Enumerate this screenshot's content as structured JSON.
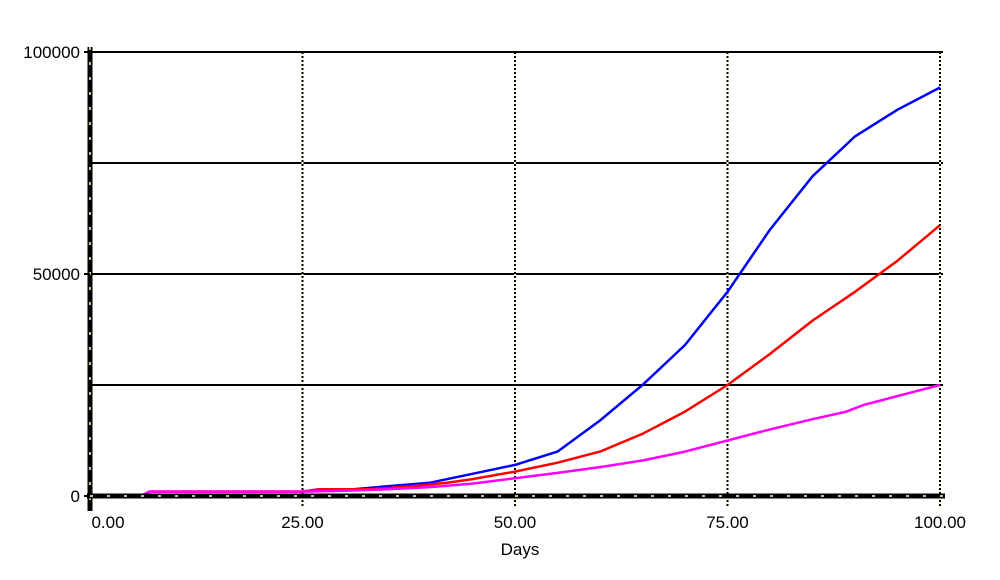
{
  "chart_data": {
    "type": "line",
    "title": "",
    "xlabel": "Days",
    "ylabel": "",
    "xlim": [
      0,
      100
    ],
    "ylim": [
      0,
      100000
    ],
    "x_ticks": [
      {
        "value": 0,
        "label": "0.00"
      },
      {
        "value": 25,
        "label": "25.00"
      },
      {
        "value": 50,
        "label": "50.00"
      },
      {
        "value": 75,
        "label": "75.00"
      },
      {
        "value": 100,
        "label": "100.00"
      }
    ],
    "y_ticks": [
      {
        "value": 0,
        "label": "0"
      },
      {
        "value": 50000,
        "label": "50000"
      },
      {
        "value": 100000,
        "label": "100000"
      }
    ],
    "grid": true,
    "legend": "none",
    "series": [
      {
        "color": "#0000ff",
        "x": [
          0,
          6,
          7,
          25,
          27,
          31,
          35,
          40,
          45,
          50,
          55,
          60,
          65,
          70,
          75,
          80,
          85,
          90,
          95,
          100
        ],
        "y": [
          0,
          0,
          1000,
          1000,
          1500,
          1500,
          2200,
          3000,
          5000,
          7000,
          10000,
          17000,
          25000,
          34000,
          46000,
          60000,
          72000,
          81000,
          87000,
          92000
        ]
      },
      {
        "color": "#ff0000",
        "x": [
          0,
          6,
          7,
          25,
          27,
          33,
          38,
          42,
          45,
          50,
          55,
          60,
          65,
          70,
          75,
          80,
          85,
          90,
          95,
          100
        ],
        "y": [
          0,
          0,
          1000,
          1000,
          1500,
          1500,
          2200,
          3000,
          3800,
          5500,
          7500,
          10000,
          14000,
          19000,
          25000,
          32000,
          39500,
          46000,
          53000,
          61000
        ]
      },
      {
        "color": "#ff00ff",
        "x": [
          0,
          6,
          7,
          25,
          30,
          35,
          40,
          45,
          50,
          55,
          60,
          65,
          70,
          75,
          80,
          85,
          89,
          91,
          95,
          100
        ],
        "y": [
          0,
          0,
          1000,
          1000,
          1200,
          1500,
          2000,
          2800,
          4000,
          5200,
          6500,
          8000,
          10000,
          12500,
          15000,
          17300,
          19000,
          20500,
          22500,
          25000
        ]
      }
    ]
  }
}
